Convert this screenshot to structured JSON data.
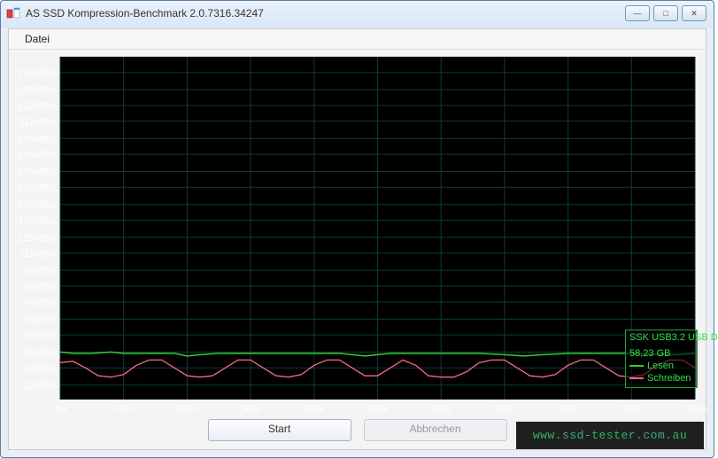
{
  "window": {
    "title": "AS SSD Kompression-Benchmark 2.0.7316.34247",
    "controls": {
      "min": "—",
      "max": "□",
      "close": "✕"
    }
  },
  "menu": {
    "file": "Datei"
  },
  "chart": {
    "type": "line",
    "background_color": "#000000",
    "grid_color": "#0c3d3d",
    "axis_text_color": "#ffffff",
    "axis_font_size": 11,
    "y_unit": "MB/s",
    "y_ticks": [
      248,
      235,
      223,
      211,
      198,
      186,
      173,
      161,
      148,
      136,
      123,
      111,
      98,
      86,
      74,
      61,
      49,
      36,
      24,
      11
    ],
    "y_min": 0,
    "y_max": 260,
    "x_unit": "%",
    "x_ticks": [
      0,
      10,
      20,
      30,
      40,
      50,
      60,
      70,
      80,
      90,
      100
    ],
    "x_min": 0,
    "x_max": 100,
    "series": {
      "read": {
        "label": "Lesen",
        "color": "#33cc33",
        "width": 1.5,
        "data": [
          [
            0,
            36
          ],
          [
            2,
            35
          ],
          [
            5,
            35
          ],
          [
            8,
            36
          ],
          [
            10,
            35
          ],
          [
            12,
            35
          ],
          [
            15,
            35
          ],
          [
            18,
            35
          ],
          [
            20,
            33
          ],
          [
            22,
            34
          ],
          [
            25,
            35
          ],
          [
            28,
            35
          ],
          [
            30,
            35
          ],
          [
            33,
            35
          ],
          [
            36,
            35
          ],
          [
            40,
            35
          ],
          [
            44,
            35
          ],
          [
            48,
            33
          ],
          [
            50,
            34
          ],
          [
            52,
            35
          ],
          [
            55,
            35
          ],
          [
            58,
            35
          ],
          [
            60,
            35
          ],
          [
            63,
            35
          ],
          [
            66,
            35
          ],
          [
            70,
            34
          ],
          [
            73,
            33
          ],
          [
            76,
            34
          ],
          [
            80,
            35
          ],
          [
            83,
            35
          ],
          [
            86,
            35
          ],
          [
            90,
            35
          ],
          [
            94,
            34
          ],
          [
            97,
            34
          ],
          [
            100,
            35
          ]
        ]
      },
      "write": {
        "label": "Schreiben",
        "color": "#ff6680",
        "width": 1.3,
        "data": [
          [
            0,
            28
          ],
          [
            2,
            29
          ],
          [
            4,
            24
          ],
          [
            6,
            18
          ],
          [
            8,
            17
          ],
          [
            10,
            19
          ],
          [
            12,
            26
          ],
          [
            14,
            30
          ],
          [
            16,
            30
          ],
          [
            18,
            24
          ],
          [
            20,
            18
          ],
          [
            22,
            17
          ],
          [
            24,
            18
          ],
          [
            26,
            24
          ],
          [
            28,
            30
          ],
          [
            30,
            30
          ],
          [
            32,
            24
          ],
          [
            34,
            18
          ],
          [
            36,
            17
          ],
          [
            38,
            19
          ],
          [
            40,
            26
          ],
          [
            42,
            30
          ],
          [
            44,
            30
          ],
          [
            46,
            24
          ],
          [
            48,
            18
          ],
          [
            50,
            18
          ],
          [
            52,
            24
          ],
          [
            54,
            30
          ],
          [
            56,
            26
          ],
          [
            58,
            18
          ],
          [
            60,
            17
          ],
          [
            62,
            17
          ],
          [
            64,
            21
          ],
          [
            66,
            28
          ],
          [
            68,
            30
          ],
          [
            70,
            30
          ],
          [
            72,
            24
          ],
          [
            74,
            18
          ],
          [
            76,
            17
          ],
          [
            78,
            19
          ],
          [
            80,
            26
          ],
          [
            82,
            30
          ],
          [
            84,
            30
          ],
          [
            86,
            24
          ],
          [
            88,
            18
          ],
          [
            90,
            17
          ],
          [
            92,
            19
          ],
          [
            94,
            26
          ],
          [
            96,
            30
          ],
          [
            98,
            30
          ],
          [
            100,
            24
          ]
        ]
      }
    }
  },
  "legend": {
    "device": "SSK USB3.2 USB D",
    "capacity": "58,23 GB",
    "border_color": "#2aa03a",
    "text_color": "#2fe04a"
  },
  "buttons": {
    "start": "Start",
    "cancel": "Abbrechen",
    "cancel_enabled": false
  },
  "watermark": {
    "text": "www.ssd-tester.com.au"
  }
}
